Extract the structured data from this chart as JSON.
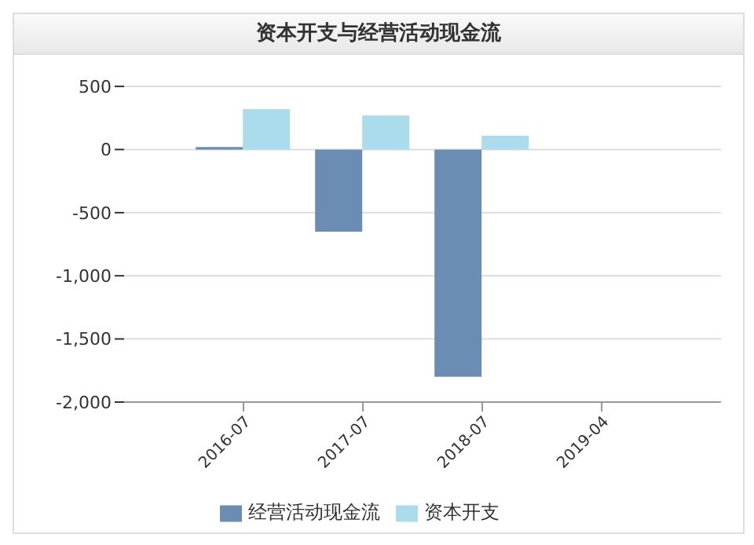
{
  "chart_data": {
    "type": "bar",
    "title": "资本开支与经营活动现金流",
    "categories": [
      "2016-07",
      "2017-07",
      "2018-07",
      "2019-04"
    ],
    "series": [
      {
        "name": "经营活动现金流",
        "color": "#6b8db3",
        "values": [
          20,
          -650,
          -1800,
          null
        ]
      },
      {
        "name": "资本开支",
        "color": "#aadcec",
        "values": [
          320,
          270,
          110,
          null
        ]
      }
    ],
    "ylim": [
      -2000,
      500
    ],
    "yticks": [
      500,
      0,
      {
        "value": -500,
        "label": "-500"
      },
      {
        "value": -1000,
        "label": "-1,000"
      },
      {
        "value": -1500,
        "label": "-1,500"
      },
      {
        "value": -2000,
        "label": "-2,000"
      }
    ],
    "grid": "y",
    "legend": "bottom"
  }
}
